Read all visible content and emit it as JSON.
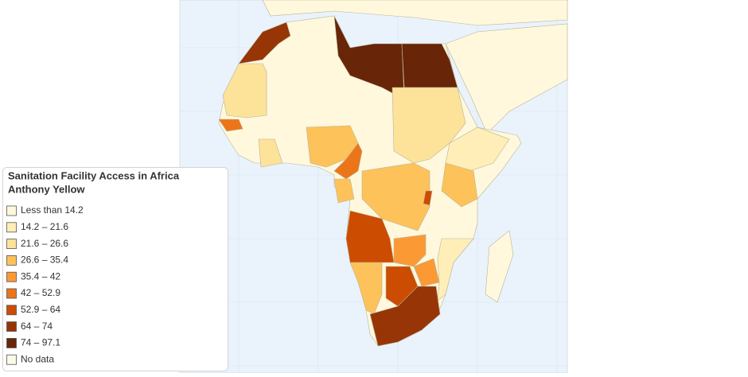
{
  "legend": {
    "title": "Sanitation Facility Access in Africa",
    "subtitle": "Anthony Yellow",
    "items": [
      {
        "label": "Less than 14.2",
        "color": "#fff8dc"
      },
      {
        "label": "14.2 – 21.6",
        "color": "#ffeeb8"
      },
      {
        "label": "21.6 – 26.6",
        "color": "#fde29a"
      },
      {
        "label": "26.6 – 35.4",
        "color": "#fdc25a"
      },
      {
        "label": "35.4 – 42",
        "color": "#fb9a35"
      },
      {
        "label": "42 – 52.9",
        "color": "#ec7519"
      },
      {
        "label": "52.9 – 64",
        "color": "#cc4c02"
      },
      {
        "label": "64 – 74",
        "color": "#973507"
      },
      {
        "label": "74 – 97.1",
        "color": "#682507"
      },
      {
        "label": "No data",
        "color": "#fafae6"
      }
    ]
  }
}
